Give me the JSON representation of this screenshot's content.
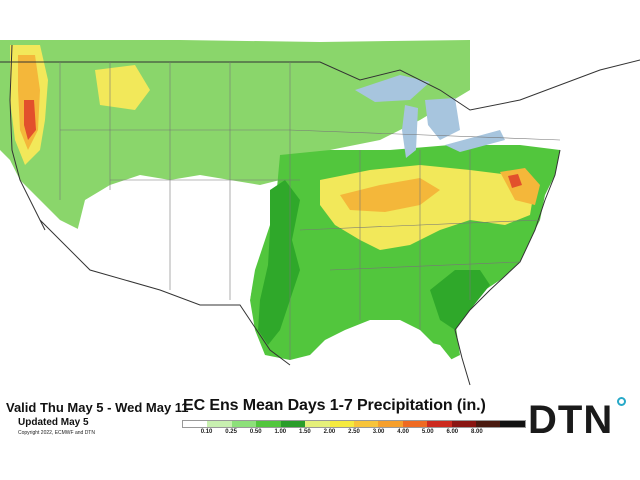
{
  "header": {
    "valid_text": "Valid Thu May 5 - Wed May 11",
    "updated_text": "Updated May 5",
    "copyright_text": "Copyright 2022, ECMWF and DTN"
  },
  "map": {
    "title": "EC Ens Mean Days 1-7 Precipitation (in.)",
    "colors": {
      "water": "#a7c5de",
      "land_outside": "#ffffff",
      "dry": "#ffffff",
      "green_light": "#9be27a",
      "green_mid": "#52c63d",
      "green_dark": "#2fa82a",
      "yellow": "#f2e85a",
      "orange": "#f4b73a",
      "red": "#e2502c"
    }
  },
  "legend": {
    "colors": [
      "#ffffff",
      "#c8f0b0",
      "#8de07a",
      "#52c63d",
      "#2a9d2a",
      "#e5f07a",
      "#f5ea3f",
      "#f8c43a",
      "#f59f2c",
      "#ee6a22",
      "#cc2a1e",
      "#8a1612",
      "#4a1a10",
      "#111111"
    ],
    "ticks": [
      "0.10",
      "0.25",
      "0.50",
      "1.00",
      "1.50",
      "2.00",
      "2.50",
      "3.00",
      "4.00",
      "5.00",
      "6.00",
      "8.00"
    ]
  },
  "logo": {
    "text": "DTN",
    "dot_color": "#27a9c8"
  }
}
